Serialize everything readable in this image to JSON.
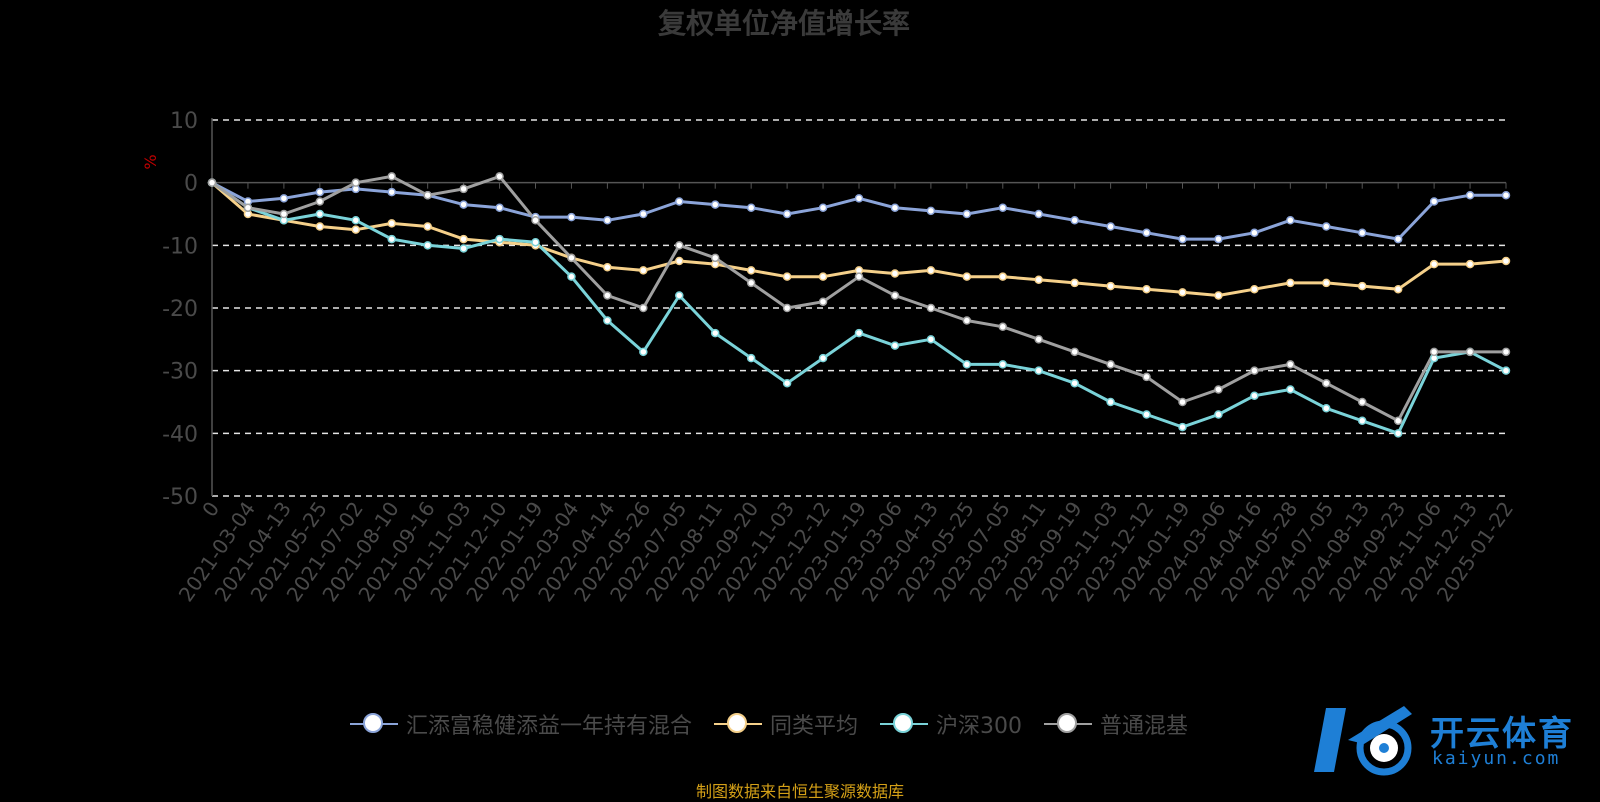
{
  "chart_data": {
    "type": "line",
    "title": "复权单位净值增长率",
    "ylabel": "%",
    "ylim": [
      -50,
      10
    ],
    "yticks": [
      10,
      0,
      -10,
      -20,
      -30,
      -40,
      -50
    ],
    "grid": true,
    "legend_position": "bottom",
    "categories": [
      "0",
      "2021-03-04",
      "2021-04-13",
      "2021-05-25",
      "2021-07-02",
      "2021-08-10",
      "2021-09-16",
      "2021-11-03",
      "2021-12-10",
      "2022-01-19",
      "2022-03-04",
      "2022-04-14",
      "2022-05-26",
      "2022-07-05",
      "2022-08-11",
      "2022-09-20",
      "2022-11-03",
      "2022-12-12",
      "2023-01-19",
      "2023-03-06",
      "2023-04-13",
      "2023-05-25",
      "2023-07-05",
      "2023-08-11",
      "2023-09-19",
      "2023-11-03",
      "2023-12-12",
      "2024-01-19",
      "2024-03-06",
      "2024-04-16",
      "2024-05-28",
      "2024-07-05",
      "2024-08-13",
      "2024-09-23",
      "2024-11-06",
      "2024-12-13",
      "2025-01-22"
    ],
    "series": [
      {
        "name": "汇添富稳健添益一年持有混合",
        "color": "#8ba4d9",
        "values": [
          0,
          -3,
          -2.5,
          -1.5,
          -1,
          -1.5,
          -2,
          -3.5,
          -4,
          -5.5,
          -5.5,
          -6,
          -5,
          -3,
          -3.5,
          -4,
          -5,
          -4,
          -2.5,
          -4,
          -4.5,
          -5,
          -4,
          -5,
          -6,
          -7,
          -8,
          -9,
          -9,
          -8,
          -6,
          -7,
          -8,
          -9,
          -3,
          -2,
          -2
        ]
      },
      {
        "name": "同类平均",
        "color": "#f5d08a",
        "values": [
          0,
          -5,
          -6,
          -7,
          -7.5,
          -6.5,
          -7,
          -9,
          -9.5,
          -10,
          -12,
          -13.5,
          -14,
          -12.5,
          -13,
          -14,
          -15,
          -15,
          -14,
          -14.5,
          -14,
          -15,
          -15,
          -15.5,
          -16,
          -16.5,
          -17,
          -17.5,
          -18,
          -17,
          -16,
          -16,
          -16.5,
          -17,
          -13,
          -13,
          -12.5
        ]
      },
      {
        "name": "沪深300",
        "color": "#7ad3d9",
        "values": [
          0,
          -4,
          -6,
          -5,
          -6,
          -9,
          -10,
          -10.5,
          -9,
          -9.5,
          -15,
          -22,
          -27,
          -18,
          -24,
          -28,
          -32,
          -28,
          -24,
          -26,
          -25,
          -29,
          -29,
          -30,
          -32,
          -35,
          -37,
          -39,
          -37,
          -34,
          -33,
          -36,
          -38,
          -40,
          -28,
          -27,
          -30
        ]
      },
      {
        "name": "普通混基",
        "color": "#a0a0a0",
        "values": [
          0,
          -4,
          -5,
          -3,
          0,
          1,
          -2,
          -1,
          1,
          -6,
          -12,
          -18,
          -20,
          -10,
          -12,
          -16,
          -20,
          -19,
          -15,
          -18,
          -20,
          -22,
          -23,
          -25,
          -27,
          -29,
          -31,
          -35,
          -33,
          -30,
          -29,
          -32,
          -35,
          -38,
          -27,
          -27,
          -27
        ]
      }
    ],
    "source": "制图数据来自恒生聚源数据库"
  },
  "logo": {
    "name": "开云体育",
    "sub": "kaiyun.com"
  }
}
